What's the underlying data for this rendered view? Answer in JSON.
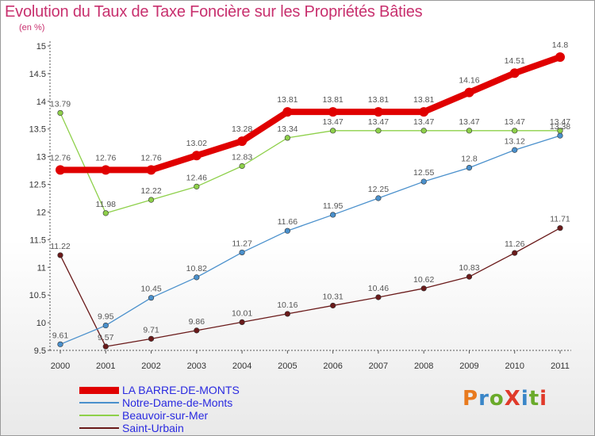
{
  "title": "Evolution du Taux de Taxe Foncière sur les Propriétés Bâties",
  "unit": "(en %)",
  "logo": {
    "text": "ProXiti",
    "colors": [
      "#e87a1e",
      "#3a86c8",
      "#6aaa2a",
      "#e03a2a",
      "#3a86c8",
      "#6aaa2a",
      "#e03a2a"
    ]
  },
  "chart_data": {
    "type": "line",
    "title": "Evolution du Taux de Taxe Foncière sur les Propriétés Bâties",
    "ylabel": "(en %)",
    "xlabel": "",
    "x": [
      "2000",
      "2001",
      "2002",
      "2003",
      "2004",
      "2005",
      "2006",
      "2007",
      "2008",
      "2009",
      "2010",
      "2011"
    ],
    "ylim": [
      9.5,
      15
    ],
    "yticks": [
      "9.5",
      "10",
      "10.5",
      "11",
      "11.5",
      "12",
      "12.5",
      "13",
      "13.5",
      "14",
      "14.5",
      "15"
    ],
    "grid": false,
    "legend_position": "bottom-left",
    "series": [
      {
        "name": "LA BARRE-DE-MONTS",
        "color": "#e00000",
        "values": [
          12.76,
          12.76,
          12.76,
          13.02,
          13.28,
          13.81,
          13.81,
          13.81,
          13.81,
          14.16,
          14.51,
          14.8
        ],
        "labels": [
          "12.76",
          "12.76",
          "12.76",
          "13.02",
          "13.28",
          "13.81",
          "13.81",
          "13.81",
          "13.81",
          "14.16",
          "14.51",
          "14.8"
        ]
      },
      {
        "name": "Notre-Dame-de-Monts",
        "color": "#4a90cc",
        "values": [
          9.61,
          9.95,
          10.45,
          10.82,
          11.27,
          11.66,
          11.95,
          12.25,
          12.55,
          12.8,
          13.12,
          13.38
        ],
        "labels": [
          "9.61",
          "9.95",
          "10.45",
          "10.82",
          "11.27",
          "11.66",
          "11.95",
          "12.25",
          "12.55",
          "12.8",
          "13.12",
          "13.38"
        ]
      },
      {
        "name": "Beauvoir-sur-Mer",
        "color": "#8ed04a",
        "values": [
          13.79,
          11.98,
          12.22,
          12.46,
          12.83,
          13.34,
          13.47,
          13.47,
          13.47,
          13.47,
          13.47,
          13.47
        ],
        "labels": [
          "13.79",
          "11.98",
          "12.22",
          "12.46",
          "12.83",
          "13.34",
          "13.47",
          "13.47",
          "13.47",
          "13.47",
          "13.47",
          "13.47"
        ]
      },
      {
        "name": "Saint-Urbain",
        "color": "#6a1a1a",
        "values": [
          11.22,
          9.57,
          9.71,
          9.86,
          10.01,
          10.16,
          10.31,
          10.46,
          10.62,
          10.83,
          11.26,
          11.71
        ],
        "labels": [
          "11.22",
          "9.57",
          "9.71",
          "9.86",
          "10.01",
          "10.16",
          "10.31",
          "10.46",
          "10.62",
          "10.83",
          "11.26",
          "11.71"
        ]
      }
    ]
  }
}
